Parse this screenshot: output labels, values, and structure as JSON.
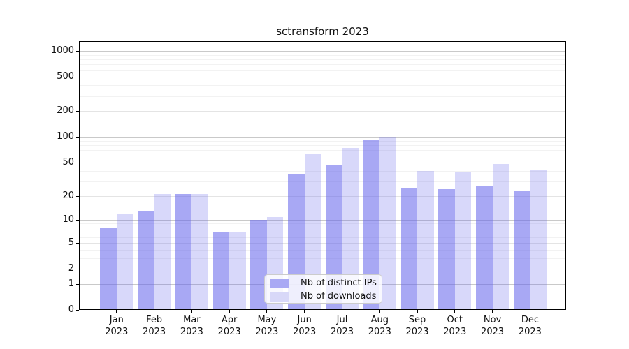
{
  "chart_data": {
    "type": "bar",
    "title": "sctransform 2023",
    "categories": [
      "Jan",
      "Feb",
      "Mar",
      "Apr",
      "May",
      "Jun",
      "Jul",
      "Aug",
      "Sep",
      "Oct",
      "Nov",
      "Dec"
    ],
    "x_year": "2023",
    "series": [
      {
        "name": "Nb of distinct IPs",
        "color": "#a9a9f4",
        "values": [
          8,
          13,
          21,
          7,
          10,
          36,
          46,
          91,
          25,
          24,
          26,
          23
        ]
      },
      {
        "name": "Nb of downloads",
        "color": "#d8d8f8",
        "values": [
          12,
          21,
          21,
          7,
          11,
          63,
          75,
          100,
          40,
          38,
          48,
          41
        ]
      }
    ],
    "y_ticks": [
      0,
      1,
      2,
      5,
      10,
      20,
      50,
      100,
      200,
      500,
      1000
    ],
    "y_scale": "log10(1+x)",
    "ylim": [
      0,
      1100
    ],
    "grid": true,
    "legend_position": "bottom-center-inside",
    "background_color": "#ffffff",
    "axis_color": "#000000"
  }
}
